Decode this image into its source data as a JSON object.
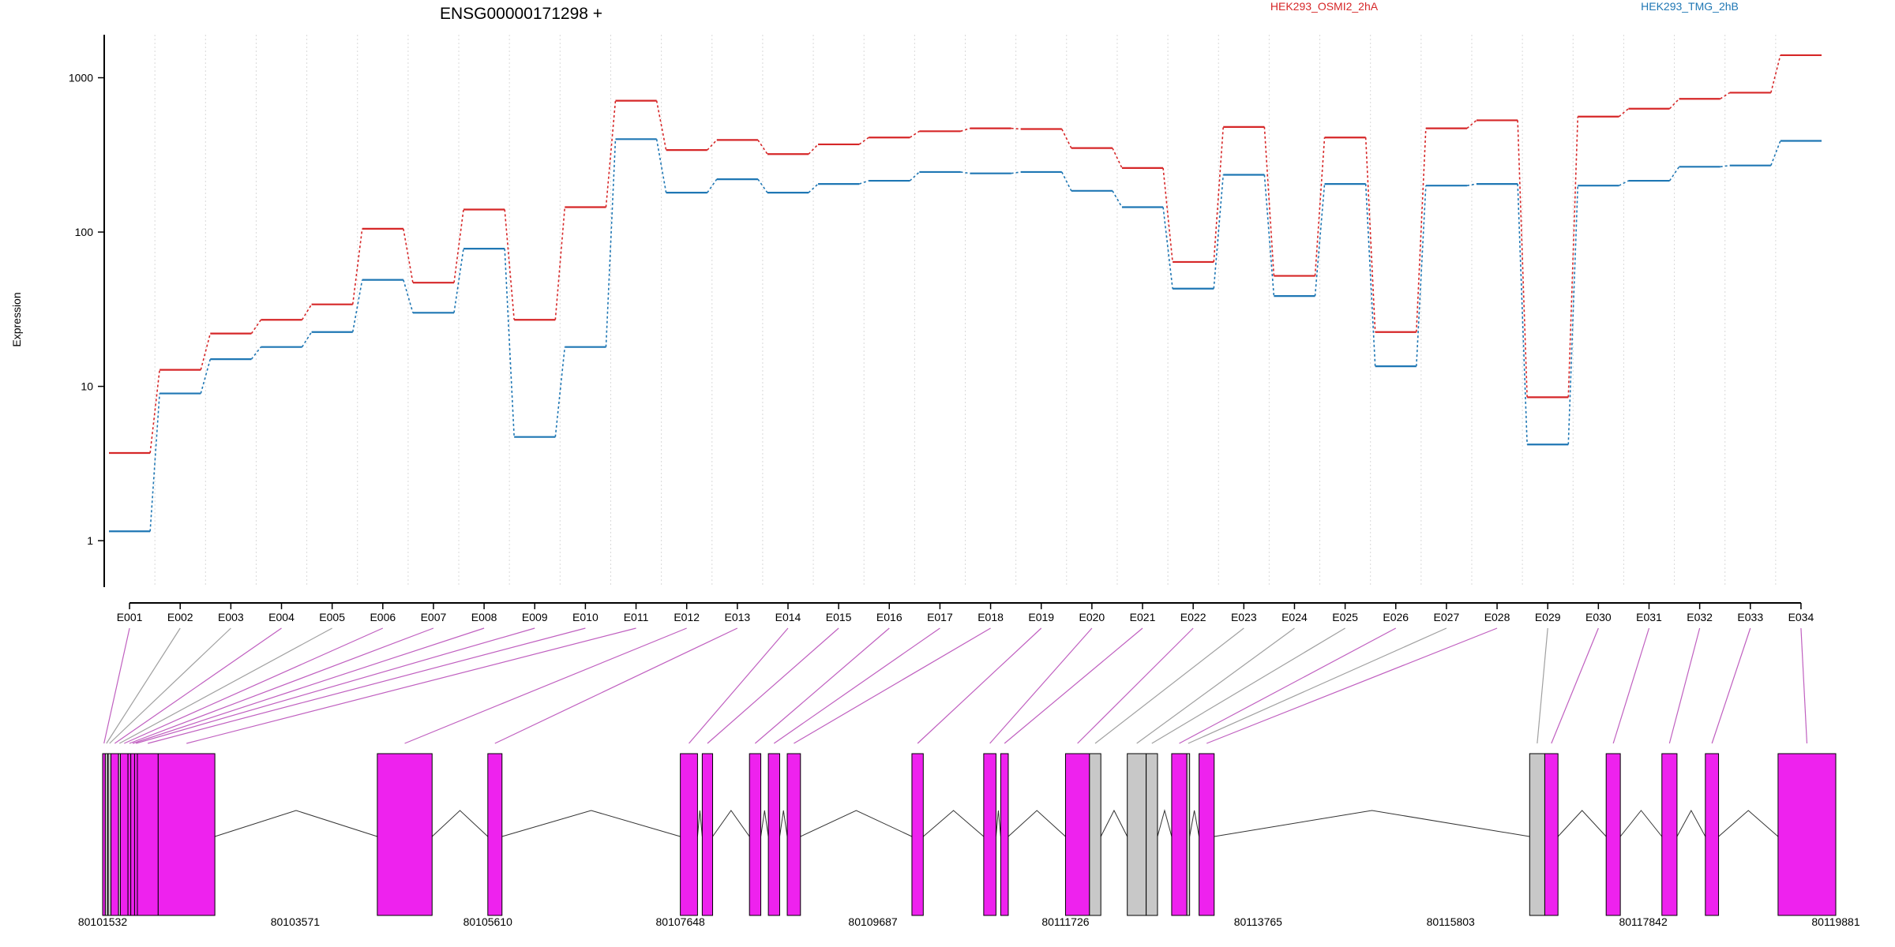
{
  "chart_data": {
    "type": "line",
    "title": "ENSG00000171298 +",
    "xlabel": "",
    "ylabel": "Expression",
    "yscale": "log",
    "ylim": [
      0.5,
      1900
    ],
    "y_ticks": [
      1,
      10,
      100,
      1000
    ],
    "y_tick_labels": [
      "1",
      "10",
      "100",
      "1000"
    ],
    "grid": "vertical dotted lines at exon boundaries",
    "legend_position": "top-right",
    "colors": {
      "HEK293_OSMI2_2hA": "#d62728",
      "HEK293_TMG_2hB": "#1f77b4",
      "exon_tested": "#ee22ee",
      "exon_untested": "#c8c8c8",
      "mapping_line_tested": "#c060c0",
      "mapping_line_untested": "#a0a0a0"
    },
    "categories": [
      "E001",
      "E002",
      "E003",
      "E004",
      "E005",
      "E006",
      "E007",
      "E008",
      "E009",
      "E010",
      "E011",
      "E012",
      "E013",
      "E014",
      "E015",
      "E016",
      "E017",
      "E018",
      "E019",
      "E020",
      "E021",
      "E022",
      "E023",
      "E024",
      "E025",
      "E026",
      "E027",
      "E028",
      "E029",
      "E030",
      "E031",
      "E032",
      "E033",
      "E034"
    ],
    "series": [
      {
        "name": "HEK293_OSMI2_2hA",
        "color": "#d62728",
        "values": [
          3.7,
          12.8,
          22,
          27,
          34,
          105,
          47,
          140,
          27,
          145,
          710,
          340,
          395,
          320,
          370,
          410,
          450,
          470,
          465,
          350,
          260,
          64,
          480,
          52,
          410,
          22.5,
          470,
          530,
          8.5,
          560,
          630,
          730,
          800,
          1400
        ]
      },
      {
        "name": "HEK293_TMG_2hB",
        "color": "#1f77b4",
        "values": [
          1.15,
          9,
          15,
          18,
          22.5,
          49,
          30,
          78,
          4.7,
          18,
          400,
          180,
          220,
          180,
          205,
          215,
          245,
          240,
          245,
          185,
          145,
          43,
          235,
          38.5,
          205,
          13.5,
          200,
          205,
          4.2,
          200,
          215,
          265,
          270,
          390
        ]
      }
    ],
    "exon_tested": [
      true,
      false,
      false,
      true,
      false,
      true,
      true,
      true,
      true,
      true,
      true,
      true,
      true,
      true,
      true,
      true,
      true,
      true,
      true,
      true,
      true,
      true,
      false,
      false,
      false,
      true,
      false,
      true,
      false,
      true,
      true,
      true,
      true,
      true
    ],
    "genomic_axis": {
      "start": 80101532,
      "end": 80119881,
      "tick_labels": [
        "80101532",
        "80103571",
        "80105610",
        "80107648",
        "80109687",
        "80111726",
        "80113765",
        "80115803",
        "80117842",
        "80119881"
      ]
    },
    "legend": [
      "HEK293_OSMI2_2hA",
      "HEK293_TMG_2hB"
    ]
  }
}
